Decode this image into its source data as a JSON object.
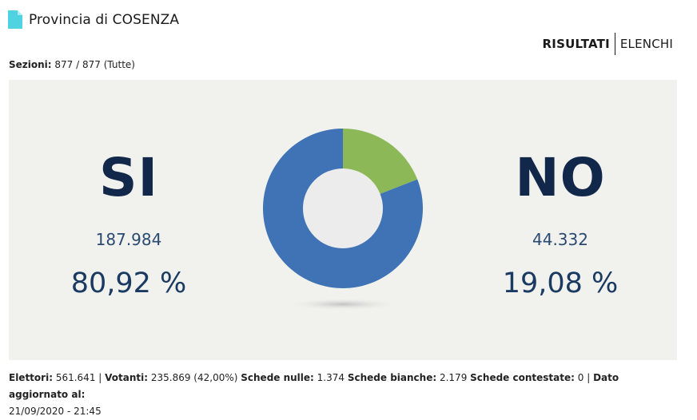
{
  "header": {
    "title": "Provincia di COSENZA",
    "icon": "document-icon",
    "icon_color": "#4fd3e0"
  },
  "view_switch": {
    "active_label": "RISULTATI",
    "inactive_label": "ELENCHI"
  },
  "sezioni": {
    "label": "Sezioni:",
    "value": "877 / 877 (Tutte)"
  },
  "results": {
    "si": {
      "label": "SI",
      "votes": "187.984",
      "percent": "80,92 %",
      "color": "#3f73b5"
    },
    "no": {
      "label": "NO",
      "votes": "44.332",
      "percent": "19,08 %",
      "color": "#8db858"
    }
  },
  "chart_data": {
    "type": "pie",
    "categories": [
      "SI",
      "NO"
    ],
    "values": [
      80.92,
      19.08
    ],
    "colors": [
      "#3f73b5",
      "#8db858"
    ]
  },
  "footer": {
    "elettori_label": "Elettori:",
    "elettori_value": "561.641",
    "votanti_label": "Votanti:",
    "votanti_value": "235.869 (42,00%)",
    "nulle_label": "Schede nulle:",
    "nulle_value": "1.374",
    "bianche_label": "Schede bianche:",
    "bianche_value": "2.179",
    "contestate_label": "Schede contestate:",
    "contestate_value": "0",
    "aggiornato_label": "Dato aggiornato al:",
    "aggiornato_value": "21/09/2020 - 21:45"
  }
}
